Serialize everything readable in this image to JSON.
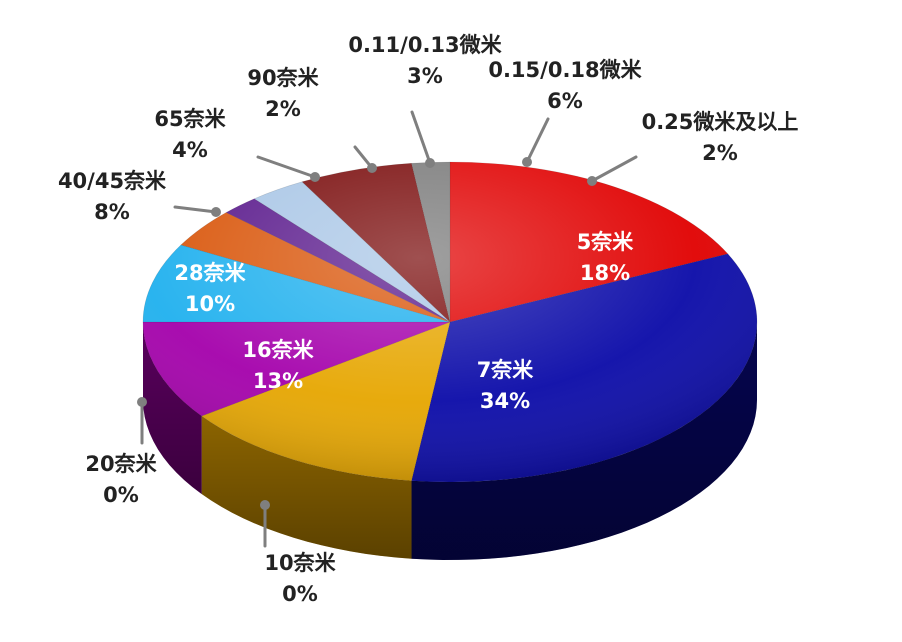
{
  "chart_data": {
    "type": "pie",
    "title": "",
    "slices": [
      {
        "label": "5奈米",
        "percent_text": "18%",
        "value": 18,
        "color": "#e00000",
        "side": "#7a0000",
        "label_color": "#ffffff"
      },
      {
        "label": "7奈米",
        "percent_text": "34%",
        "value": 34,
        "color": "#0a0aa8",
        "side": "#05054f",
        "label_color": "#ffffff"
      },
      {
        "label": "10奈米",
        "percent_text": "0%",
        "value": 0,
        "color": "#0a0aa8",
        "side": "#05054f",
        "label_color": "#222222"
      },
      {
        "label": "20奈米",
        "percent_text": "0%",
        "value": 0,
        "color": "#e6a600",
        "side": "#8c6400",
        "label_color": "#222222"
      },
      {
        "label": "16奈米",
        "percent_text": "13%",
        "value": 13,
        "color": "#e6a600",
        "side": "#8c6400",
        "label_color": "#ffffff"
      },
      {
        "label": "28奈米",
        "percent_text": "10%",
        "value": 10,
        "color": "#a400ab",
        "side": "#5a005e",
        "label_color": "#ffffff"
      },
      {
        "label": "40/45奈米",
        "percent_text": "8%",
        "value": 8,
        "color": "#1fb0ee",
        "side": "#0f6f96",
        "label_color": "#222222"
      },
      {
        "label": "65奈米",
        "percent_text": "4%",
        "value": 4,
        "color": "#d9560b",
        "side": "#7d3106",
        "label_color": "#222222"
      },
      {
        "label": "90奈米",
        "percent_text": "2%",
        "value": 2,
        "color": "#5a1a8c",
        "side": "#2f0c4a",
        "label_color": "#222222"
      },
      {
        "label": "0.11/0.13微米",
        "percent_text": "3%",
        "value": 3,
        "color": "#a9c6e6",
        "side": "#6b87a8",
        "label_color": "#222222"
      },
      {
        "label": "0.15/0.18微米",
        "percent_text": "6%",
        "value": 6,
        "color": "#7a0c0c",
        "side": "#3d0404",
        "label_color": "#222222"
      },
      {
        "label": "0.25微米及以上",
        "percent_text": "2%",
        "value": 2,
        "color": "#7a7a7a",
        "side": "#3c3c3c",
        "label_color": "#222222"
      }
    ],
    "legend": "none",
    "data_labels": "category and percent"
  }
}
